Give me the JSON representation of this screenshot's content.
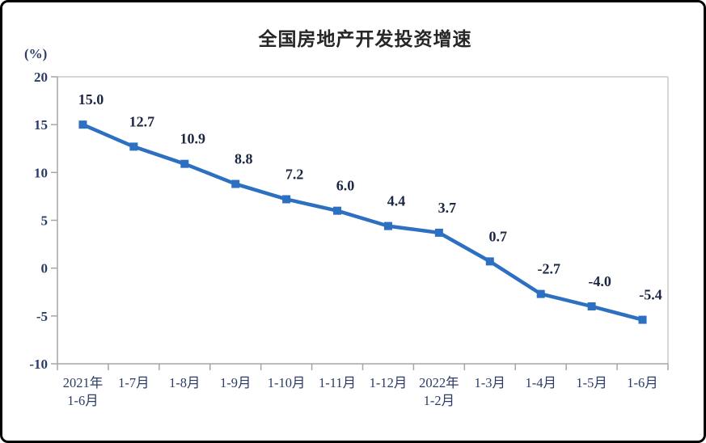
{
  "frame": {
    "border_color": "#000000",
    "background_color": "#ffffff"
  },
  "chart_data": {
    "type": "line",
    "title": "全国房地产开发投资增速",
    "unit_label": "(%)",
    "xlabel": "",
    "ylabel": "(%)",
    "categories": [
      [
        "2021年",
        "1-6月"
      ],
      [
        "1-7月"
      ],
      [
        "1-8月"
      ],
      [
        "1-9月"
      ],
      [
        "1-10月"
      ],
      [
        "1-11月"
      ],
      [
        "1-12月"
      ],
      [
        "2022年",
        "1-2月"
      ],
      [
        "1-3月"
      ],
      [
        "1-4月"
      ],
      [
        "1-5月"
      ],
      [
        "1-6月"
      ]
    ],
    "values": [
      15.0,
      12.7,
      10.9,
      8.8,
      7.2,
      6.0,
      4.4,
      3.7,
      0.7,
      -2.7,
      -4.0,
      -5.4
    ],
    "labels": [
      "15.0",
      "12.7",
      "10.9",
      "8.8",
      "7.2",
      "6.0",
      "4.4",
      "3.7",
      "0.7",
      "-2.7",
      "-4.0",
      "-5.4"
    ],
    "ylim": [
      -10,
      20
    ],
    "yticks": [
      20,
      15,
      10,
      5,
      0,
      -5,
      -10
    ],
    "ytick_step": 5,
    "grid": false,
    "legend": false,
    "marker": "square",
    "colors": {
      "line": "#2D6FC1",
      "marker": "#2D6FC1",
      "axis": "#a6a6a6",
      "plot_border": "#c9c9c9",
      "tick_label": "#2b3d66",
      "data_label": "#1c2744",
      "title": "#262626"
    }
  }
}
